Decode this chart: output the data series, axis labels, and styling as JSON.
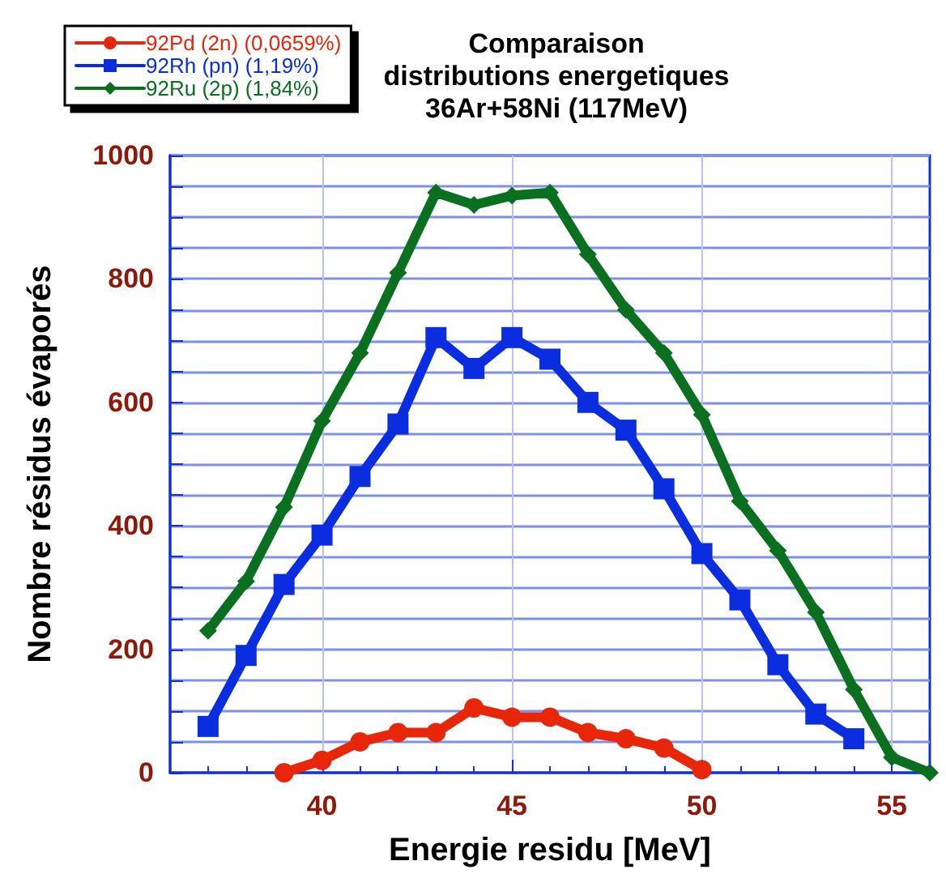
{
  "chart_data": {
    "type": "line",
    "title": "Comparaison\ndistributions energetiques\n36Ar+58Ni (117MeV)",
    "xlabel": "Energie residu [MeV]",
    "ylabel": "Nombre résidus évaporés",
    "xlim": [
      36,
      56
    ],
    "xticks": [
      40,
      45,
      50,
      55
    ],
    "ylim": [
      0,
      1000
    ],
    "yticks": [
      0,
      {
        "value": 50,
        "label": null
      },
      {
        "value": 100,
        "label": null
      },
      {
        "value": 150,
        "label": null
      },
      200,
      {
        "value": 250,
        "label": null
      },
      {
        "value": 300,
        "label": null
      },
      {
        "value": 350,
        "label": null
      },
      400,
      {
        "value": 450,
        "label": null
      },
      {
        "value": 500,
        "label": null
      },
      {
        "value": 550,
        "label": null
      },
      600,
      {
        "value": 650,
        "label": null
      },
      {
        "value": 700,
        "label": null
      },
      {
        "value": 750,
        "label": null
      },
      800,
      {
        "value": 850,
        "label": null
      },
      {
        "value": 900,
        "label": null
      },
      {
        "value": 950,
        "label": null
      },
      1000
    ],
    "grid": true,
    "legend": "top left",
    "line_style": "solid",
    "series": [
      {
        "name": "92Pd (2n) (0,0659%)",
        "color": "#e8260a",
        "marker": "circle",
        "x": [
          39,
          40,
          41,
          42,
          43,
          44,
          45,
          46,
          47,
          48,
          49,
          50
        ],
        "values": [
          0,
          20,
          50,
          65,
          65,
          105,
          90,
          90,
          65,
          55,
          40,
          5
        ]
      },
      {
        "name": "92Rh (pn) (1,19%)",
        "color": "#0a2de0",
        "marker": "square",
        "x": [
          37,
          38,
          39,
          40,
          41,
          42,
          43,
          44,
          45,
          46,
          47,
          48,
          49,
          50,
          51,
          52,
          53,
          54
        ],
        "values": [
          75,
          190,
          305,
          385,
          480,
          565,
          705,
          655,
          705,
          670,
          600,
          555,
          460,
          355,
          280,
          175,
          95,
          55
        ]
      },
      {
        "name": "92Ru (2p) (1,84%)",
        "color": "#0a7020",
        "marker": "diamond",
        "x": [
          37,
          38,
          39,
          40,
          41,
          42,
          43,
          44,
          45,
          46,
          47,
          48,
          49,
          50,
          51,
          52,
          53,
          54,
          55,
          56
        ],
        "values": [
          230,
          310,
          430,
          570,
          680,
          810,
          940,
          920,
          935,
          940,
          840,
          750,
          680,
          580,
          440,
          360,
          260,
          135,
          25,
          0
        ]
      }
    ]
  }
}
